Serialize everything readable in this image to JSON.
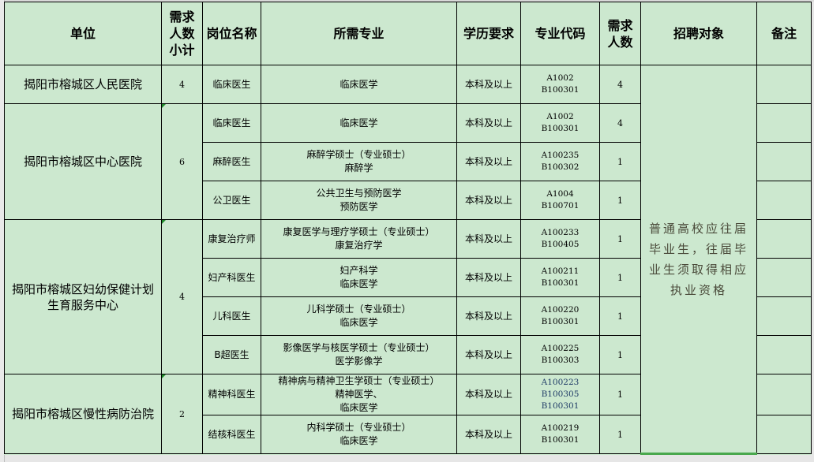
{
  "headers": {
    "unit": "单位",
    "subtotal": "需求人数小计",
    "subtotal_lines": [
      "需求",
      "人数",
      "小计"
    ],
    "position": "岗位名称",
    "major": "所需专业",
    "education": "学历要求",
    "code": "专业代码",
    "count_lines": [
      "需求",
      "人数"
    ],
    "target": "招聘对象",
    "remark": "备注"
  },
  "units": [
    {
      "name": "揭阳市榕城区人民医院",
      "subtotal": "4"
    },
    {
      "name": "揭阳市榕城区中心医院",
      "subtotal": "6"
    },
    {
      "name": "揭阳市榕城区妇幼保健计划生育服务中心",
      "name_lines": [
        "揭阳市榕城区妇幼保健计划",
        "生育服务中心"
      ],
      "subtotal": "4"
    },
    {
      "name": "揭阳市榕城区慢性病防治院",
      "subtotal": "2"
    }
  ],
  "rows": [
    {
      "position": "临床医生",
      "major": [
        "临床医学"
      ],
      "education": "本科及以上",
      "codes": [
        "A1002",
        "B100301"
      ],
      "count": "4"
    },
    {
      "position": "临床医生",
      "major": [
        "临床医学"
      ],
      "education": "本科及以上",
      "codes": [
        "A1002",
        "B100301"
      ],
      "count": "4"
    },
    {
      "position": "麻醉医生",
      "major": [
        "麻醉学硕士（专业硕士）",
        "麻醉学"
      ],
      "education": "本科及以上",
      "codes": [
        "A100235",
        "B100302"
      ],
      "count": "1"
    },
    {
      "position": "公卫医生",
      "major": [
        "公共卫生与预防医学",
        "预防医学"
      ],
      "education": "本科及以上",
      "codes": [
        "A1004",
        "B100701"
      ],
      "count": "1"
    },
    {
      "position": "康复治疗师",
      "major": [
        "康复医学与理疗学硕士（专业硕士）",
        "康复治疗学"
      ],
      "education": "本科及以上",
      "codes": [
        "A100233",
        "B100405"
      ],
      "count": "1"
    },
    {
      "position": "妇产科医生",
      "major": [
        "妇产科学",
        "临床医学"
      ],
      "education": "本科及以上",
      "codes": [
        "A100211",
        "B100301"
      ],
      "count": "1"
    },
    {
      "position": "儿科医生",
      "major": [
        "儿科学硕士（专业硕士）",
        "临床医学"
      ],
      "education": "本科及以上",
      "codes": [
        "A100220",
        "B100301"
      ],
      "count": "1"
    },
    {
      "position": "B超医生",
      "major": [
        "影像医学与核医学硕士（专业硕士）",
        "医学影像学"
      ],
      "education": "本科及以上",
      "codes": [
        "A100225",
        "B100303"
      ],
      "count": "1"
    },
    {
      "position": "精神科医生",
      "major": [
        "精神病与精神卫生学硕士（专业硕士）",
        "精神医学、",
        "临床医学"
      ],
      "education": "本科及以上",
      "codes": [
        "A100223",
        "B100305",
        "B100301"
      ],
      "count": "1"
    },
    {
      "position": "结核科医生",
      "major": [
        "内科学硕士（专业硕士）",
        "临床医学"
      ],
      "education": "本科及以上",
      "codes": [
        "A100219",
        "B100301"
      ],
      "count": "1"
    }
  ],
  "target": "普通高校应往届毕业生，往届毕业生须取得相应执业资格",
  "colors": {
    "cell_bg": "#cce8cf",
    "selection": "#4aa84e"
  }
}
